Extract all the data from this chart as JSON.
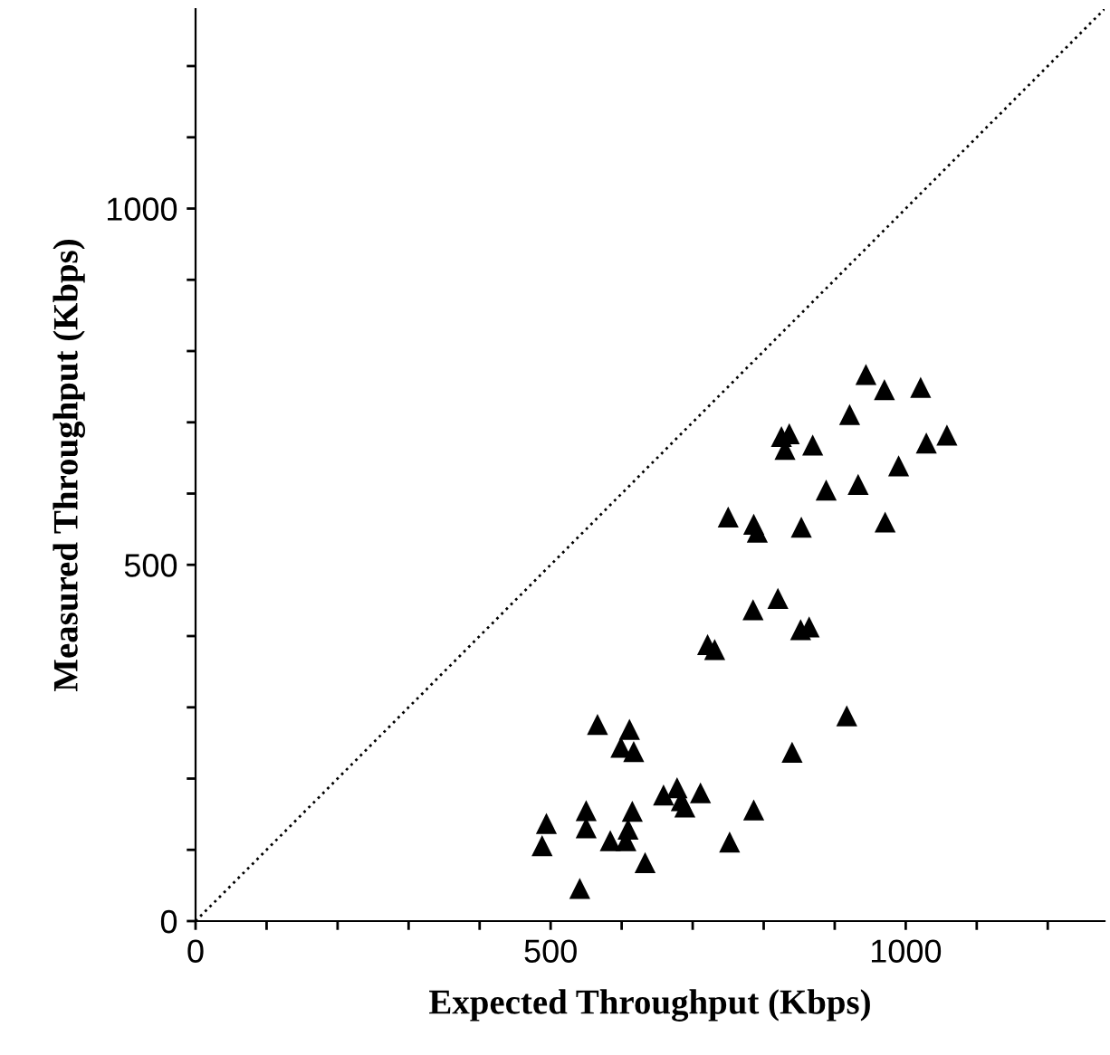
{
  "chart_data": {
    "type": "scatter",
    "xlabel": "Expected Throughput (Kbps)",
    "ylabel": "Measured Throughput (Kbps)",
    "xlim": [
      0,
      1280
    ],
    "ylim": [
      0,
      1280
    ],
    "xticks": [
      0,
      {
        "value": 100,
        "label": null
      },
      {
        "value": 200,
        "label": null
      },
      {
        "value": 300,
        "label": null
      },
      {
        "value": 400,
        "label": null
      },
      500,
      {
        "value": 600,
        "label": null
      },
      {
        "value": 700,
        "label": null
      },
      {
        "value": 800,
        "label": null
      },
      {
        "value": 900,
        "label": null
      },
      1000,
      {
        "value": 1100,
        "label": null
      },
      {
        "value": 1200,
        "label": null
      }
    ],
    "yticks": [
      0,
      {
        "value": 100,
        "label": null
      },
      {
        "value": 200,
        "label": null
      },
      {
        "value": 300,
        "label": null
      },
      {
        "value": 400,
        "label": null
      },
      500,
      {
        "value": 600,
        "label": null
      },
      {
        "value": 700,
        "label": null
      },
      {
        "value": 800,
        "label": null
      },
      {
        "value": 900,
        "label": null
      },
      1000,
      {
        "value": 1100,
        "label": null
      },
      {
        "value": 1200,
        "label": null
      }
    ],
    "grid": false,
    "legend": false,
    "series": [
      {
        "type": "line",
        "color": "#000000",
        "line_style": "dotted",
        "marker": "none",
        "x": [
          0,
          1280
        ],
        "values": [
          0,
          1280
        ]
      },
      {
        "color": "#000000",
        "marker": "triangle",
        "x": [
          944,
          970,
          1021,
          921,
          825,
          836,
          830,
          869,
          1029,
          1058,
          990,
          888,
          933,
          971,
          750,
          786,
          791,
          853,
          820,
          785,
          852,
          864,
          721,
          731,
          917,
          840,
          566,
          611,
          599,
          617,
          659,
          678,
          711,
          689,
          684,
          786,
          550,
          615,
          494,
          550,
          609,
          584,
          606,
          488,
          752,
          633,
          541
        ],
        "values": [
          767,
          746,
          749,
          711,
          680,
          684,
          662,
          668,
          671,
          682,
          639,
          605,
          613,
          560,
          567,
          557,
          546,
          553,
          453,
          437,
          409,
          413,
          388,
          381,
          288,
          237,
          276,
          269,
          244,
          238,
          177,
          187,
          180,
          160,
          169,
          156,
          155,
          154,
          137,
          131,
          129,
          113,
          113,
          106,
          111,
          82,
          46
        ]
      }
    ]
  }
}
